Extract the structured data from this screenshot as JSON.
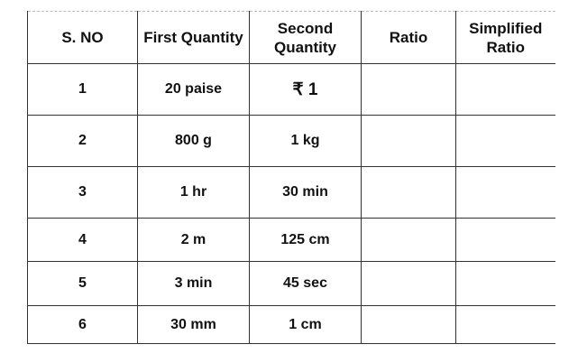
{
  "table": {
    "header": [
      "S. NO",
      "First Quantity",
      "Second Quantity",
      "Ratio",
      "Simplified Ratio"
    ],
    "rows": [
      [
        "1",
        "20 paise",
        "₹ 1"
      ],
      [
        "2",
        "800 g",
        "1 kg"
      ],
      [
        "3",
        "1 hr",
        "30 min"
      ],
      [
        "4",
        "2 m",
        "125 cm"
      ],
      [
        "5",
        "3 min",
        "45 sec"
      ],
      [
        "6",
        "30 mm",
        "1 cm"
      ]
    ]
  }
}
